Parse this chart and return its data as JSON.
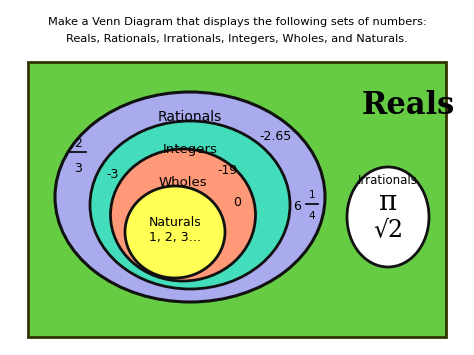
{
  "title_line1": "Make a Venn Diagram that displays the following sets of numbers:",
  "title_line2": "Reals, Rationals, Irrationals, Integers, Wholes, and Naturals.",
  "bg_color": "#ffffff",
  "box_bg": "#66cc44",
  "reals_label": "Reals",
  "rationals_label": "Rationals",
  "integers_label": "Integers",
  "wholes_label": "Wholes",
  "naturals_label": "Naturals",
  "naturals_sub": "1, 2, 3…",
  "irrationals_label": "Irrationals",
  "irrationals_sym1": "π",
  "irrationals_sym2": "√2",
  "sample_neg265": "-2.65",
  "sample_neg3": "-3",
  "sample_neg19": "-19",
  "sample_0": "0",
  "rationals_color": "#aaaaee",
  "integers_color": "#44ddbb",
  "wholes_color": "#ff9977",
  "naturals_color": "#ffff55",
  "irrationals_color": "#ffffff",
  "box_edge": "#333300",
  "circle_edge": "#111111"
}
